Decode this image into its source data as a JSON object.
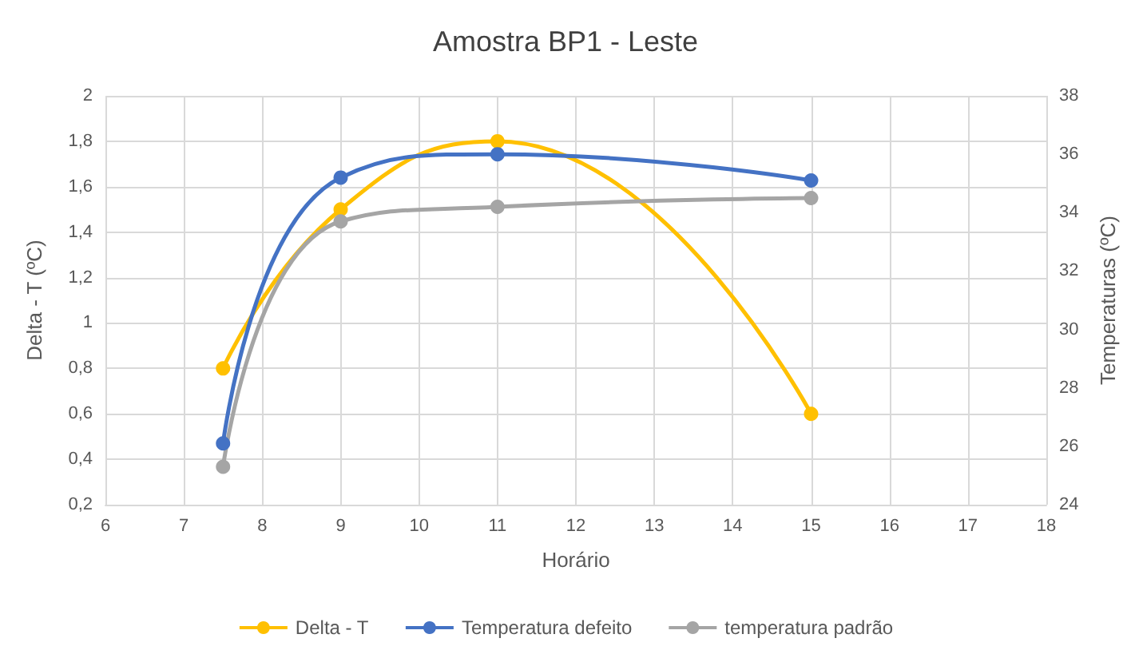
{
  "chart_data": {
    "type": "line",
    "title": "Amostra BP1 - Leste",
    "xlabel": "Horário",
    "ylabel": "Delta - T (ºC)",
    "y2label": "Temperaturas (ºC)",
    "x": [
      7.5,
      9,
      11,
      15
    ],
    "series": [
      {
        "name": "Delta - T",
        "color": "#ffc000",
        "values": [
          0.8,
          1.5,
          1.8,
          0.6
        ]
      },
      {
        "name": "Temperatura defeito",
        "color": "#4472c4",
        "axis": "y2",
        "values": [
          26.1,
          35.2,
          36.0,
          35.1
        ]
      },
      {
        "name": "temperatura padrão",
        "color": "#a5a5a5",
        "axis": "y2",
        "values": [
          25.3,
          33.7,
          34.2,
          34.5
        ]
      }
    ],
    "xlim": [
      6,
      18
    ],
    "xticks": [
      6,
      7,
      8,
      9,
      10,
      11,
      12,
      13,
      14,
      15,
      16,
      17,
      18
    ],
    "ylim": [
      0.2,
      2
    ],
    "yticks": [
      {
        "value": 0.2,
        "label": "0,2"
      },
      {
        "value": 0.4,
        "label": "0,4"
      },
      {
        "value": 0.6,
        "label": "0,6"
      },
      {
        "value": 0.8,
        "label": "0,8"
      },
      1,
      {
        "value": 1.2,
        "label": "1,2"
      },
      {
        "value": 1.4,
        "label": "1,4"
      },
      {
        "value": 1.6,
        "label": "1,6"
      },
      {
        "value": 1.8,
        "label": "1,8"
      },
      2
    ],
    "y2lim": [
      24,
      38
    ],
    "y2ticks": [
      24,
      26,
      28,
      30,
      32,
      34,
      36,
      38
    ],
    "grid": true,
    "legend": "bottom",
    "marker": "circle",
    "line_style": "solid"
  }
}
